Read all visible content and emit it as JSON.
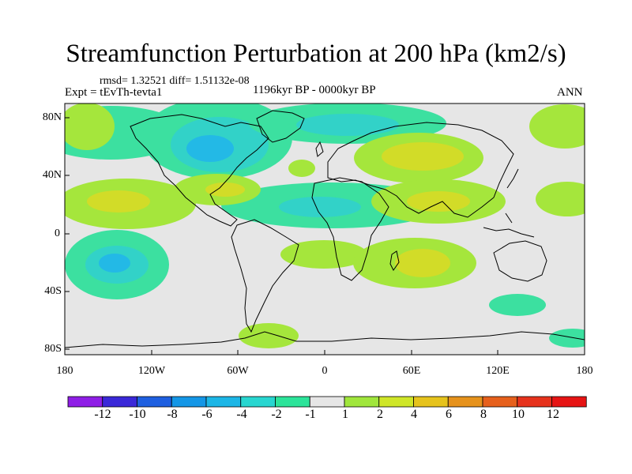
{
  "title": "Streamfunction Perturbation at 200 hPa (km2/s)",
  "stats_line": "rmsd= 1.32521 diff= 1.51132e-08",
  "experiment": "Expt = tEvTh-tevta1",
  "period": "1196kyr BP - 0000kyr BP",
  "season": "ANN",
  "y_axis_labels": [
    "80N",
    "40N",
    "0",
    "40S",
    "80S"
  ],
  "x_axis_labels": [
    "180",
    "120W",
    "60W",
    "0",
    "60E",
    "120E",
    "180"
  ],
  "colorbar": {
    "labels": [
      "-12",
      "-10",
      "-8",
      "-6",
      "-4",
      "-2",
      "-1",
      "1",
      "2",
      "4",
      "6",
      "8",
      "10",
      "12"
    ],
    "colors": [
      "#8f1ee6",
      "#3a28d8",
      "#1e5fe0",
      "#1496e6",
      "#1cb6e6",
      "#28d6d0",
      "#2ce49a",
      "#e6e6e6",
      "#a0e63c",
      "#cfe628",
      "#e6c31c",
      "#e6921c",
      "#e6601c",
      "#e6321c",
      "#e61414"
    ]
  },
  "map_colors": {
    "background": "#e6e6e6",
    "neg_weak": "#3ce0a0",
    "neg_mid": "#32d2c8",
    "neg_strong": "#23b9e6",
    "pos_weak": "#a5e63c",
    "pos_mid": "#d2dc28"
  }
}
